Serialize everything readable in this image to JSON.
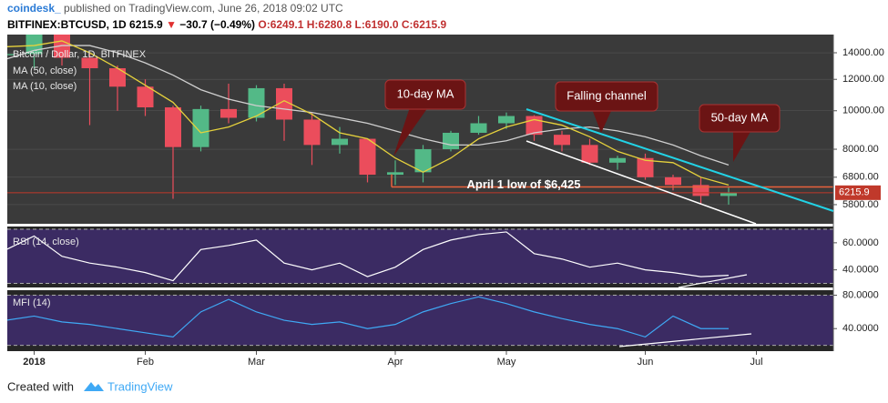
{
  "header": {
    "publisher": "coindesk_",
    "published": "published on TradingView.com, June 26, 2018 09:02 UTC",
    "symbol": "BITFINEX:BTCUSD, 1D",
    "last": "6215.9",
    "arrow": "▼",
    "change": "−30.7 (−0.49%)",
    "open": "O:6249.1",
    "high": "H:6280.8",
    "low": "L:6190.0",
    "close": "C:6215.9"
  },
  "footer": {
    "created": "Created with",
    "brand": "TradingView"
  },
  "chart_data": [
    {
      "type": "candlestick",
      "title": "Bitcoin / Dollar, 1D, BITFINEX",
      "categories": [
        null,
        "2018",
        null,
        null,
        null,
        "Feb",
        null,
        null,
        null,
        "Mar",
        null,
        null,
        null,
        null,
        "Apr",
        null,
        null,
        null,
        "May",
        null,
        null,
        null,
        null,
        "Jun",
        null,
        null,
        null,
        "Jul",
        null,
        null
      ],
      "open": [
        13800,
        13900,
        16200,
        13600,
        12800,
        11500,
        10200,
        8100,
        10100,
        9600,
        11400,
        9500,
        8200,
        8500,
        6900,
        7000,
        8000,
        8800,
        9300,
        9700,
        8700,
        8200,
        7400,
        7600,
        6800,
        6500,
        6100,
        null,
        null,
        null
      ],
      "high": [
        16000,
        17200,
        16300,
        14000,
        13000,
        12000,
        10300,
        10300,
        11700,
        11600,
        11700,
        9900,
        9100,
        8500,
        7500,
        8200,
        8900,
        9700,
        9900,
        9750,
        8900,
        8500,
        7700,
        7800,
        6900,
        6800,
        6400,
        null,
        null,
        null
      ],
      "low": [
        12500,
        12800,
        13000,
        9200,
        10000,
        9700,
        6000,
        7900,
        9300,
        9400,
        8400,
        7300,
        7800,
        6600,
        6500,
        6600,
        7900,
        8700,
        9000,
        8400,
        7900,
        7300,
        7100,
        6700,
        6300,
        5800,
        5800,
        null,
        null,
        null
      ],
      "close": [
        13900,
        16200,
        13600,
        12800,
        11500,
        10200,
        8100,
        10100,
        9600,
        11400,
        9500,
        8200,
        8500,
        6900,
        7000,
        8000,
        8800,
        9300,
        9700,
        8700,
        8200,
        7400,
        7600,
        6800,
        6500,
        6100,
        6216,
        null,
        null,
        null
      ],
      "up_color": "#53b987",
      "down_color": "#eb4d5c",
      "series": [
        {
          "name": "MA (50, close)",
          "color": "#cfcfcf",
          "values": [
            13500,
            14200,
            14600,
            14600,
            14000,
            13200,
            12300,
            11300,
            10700,
            10300,
            10100,
            9900,
            9600,
            9300,
            8900,
            8500,
            8200,
            8200,
            8400,
            8800,
            9000,
            9100,
            8900,
            8600,
            8200,
            7700,
            7300,
            null,
            null,
            null
          ]
        },
        {
          "name": "MA (10, close)",
          "color": "#e6d23c",
          "values": [
            14500,
            14600,
            15000,
            14000,
            12800,
            11600,
            10500,
            8800,
            9100,
            9700,
            10600,
            9800,
            8800,
            8500,
            7600,
            7000,
            7600,
            8500,
            9100,
            9500,
            9200,
            8600,
            7900,
            7500,
            7400,
            6800,
            6500,
            null,
            null,
            null
          ]
        }
      ],
      "ylim": [
        5190,
        15560
      ],
      "log_scale": true,
      "yticks": [
        {
          "value": 5800,
          "label": "5800.00"
        },
        {
          "value": 6800,
          "label": "6800.00"
        },
        {
          "value": 8000,
          "label": "8000.00"
        },
        {
          "value": 10000,
          "label": "10000.00"
        },
        {
          "value": 12000,
          "label": "12000.00"
        },
        {
          "value": 14000,
          "label": "14000.00"
        }
      ],
      "last_price": 6215.9,
      "annotations": [
        {
          "text": "10-day MA"
        },
        {
          "text": "Falling channel"
        },
        {
          "text": "50-day MA"
        },
        {
          "text": "April 1 low of $6,425",
          "value": 6425
        }
      ]
    },
    {
      "type": "line",
      "title": "RSI (14, close)",
      "color": "#ffffff",
      "values": [
        55,
        65,
        50,
        45,
        42,
        38,
        32,
        55,
        58,
        62,
        45,
        40,
        45,
        35,
        42,
        55,
        62,
        66,
        68,
        52,
        48,
        42,
        45,
        40,
        38,
        35,
        36,
        null,
        null,
        null
      ],
      "ylim": [
        27,
        72
      ],
      "yticks": [
        {
          "value": 40,
          "label": "40.0000"
        },
        {
          "value": 60,
          "label": "60.0000"
        }
      ],
      "levels": [
        30,
        70
      ]
    },
    {
      "type": "line",
      "title": "MFI (14)",
      "color": "#3fa9f5",
      "values": [
        50,
        55,
        48,
        45,
        40,
        35,
        30,
        60,
        75,
        60,
        50,
        45,
        48,
        40,
        45,
        60,
        70,
        78,
        70,
        60,
        52,
        45,
        40,
        30,
        55,
        40,
        40,
        null,
        null,
        null
      ],
      "ylim": [
        13,
        86
      ],
      "yticks": [
        {
          "value": 40,
          "label": "40.0000"
        },
        {
          "value": 80,
          "label": "80.0000"
        }
      ],
      "levels": [
        20,
        80
      ]
    }
  ]
}
